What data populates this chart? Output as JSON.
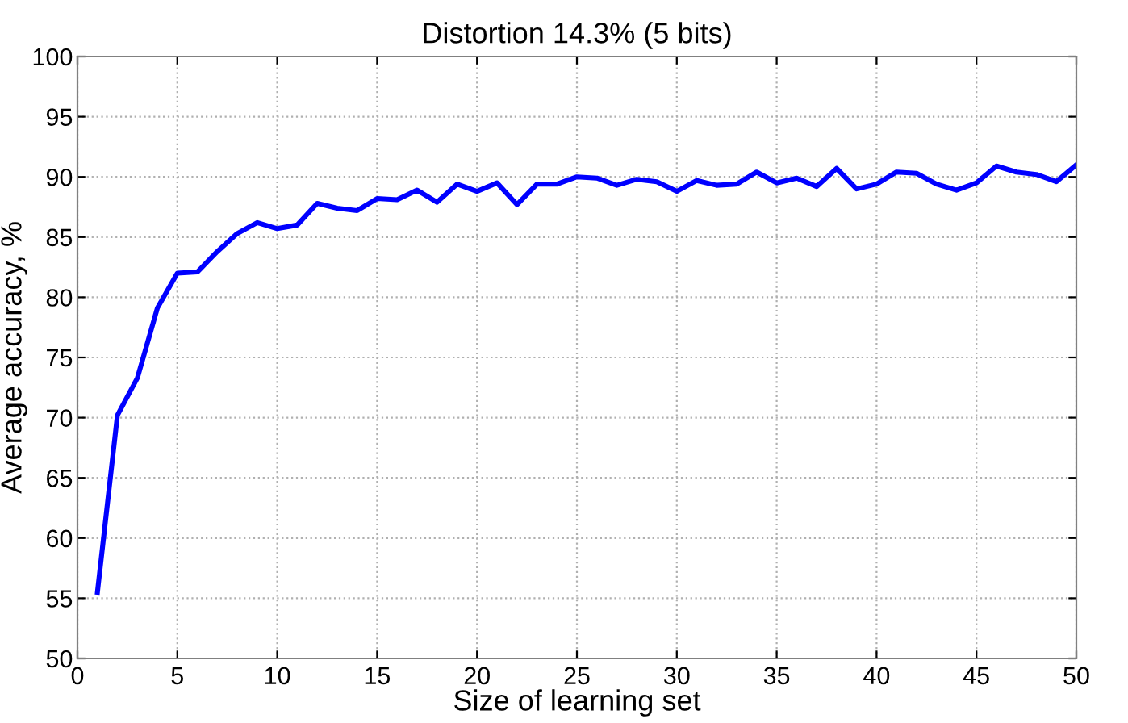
{
  "chart_data": {
    "type": "line",
    "title": "Distortion 14.3% (5 bits)",
    "xlabel": "Size of learning set",
    "ylabel": "Average accuracy, %",
    "x": [
      1,
      2,
      3,
      4,
      5,
      6,
      7,
      8,
      9,
      10,
      11,
      12,
      13,
      14,
      15,
      16,
      17,
      18,
      19,
      20,
      21,
      22,
      23,
      24,
      25,
      26,
      27,
      28,
      29,
      30,
      31,
      32,
      33,
      34,
      35,
      36,
      37,
      38,
      39,
      40,
      41,
      42,
      43,
      44,
      45,
      46,
      47,
      48,
      49,
      50
    ],
    "series": [
      {
        "color": "#0000ff",
        "values": [
          55.5,
          70.2,
          73.3,
          79.1,
          82.0,
          82.1,
          83.8,
          85.3,
          86.2,
          85.7,
          86.0,
          87.8,
          87.4,
          87.2,
          88.2,
          88.1,
          88.9,
          87.9,
          89.4,
          88.8,
          89.5,
          87.7,
          89.4,
          89.4,
          90.0,
          89.9,
          89.3,
          89.8,
          89.6,
          88.8,
          89.7,
          89.3,
          89.4,
          90.4,
          89.5,
          89.9,
          89.2,
          90.7,
          89.0,
          89.4,
          90.4,
          90.3,
          89.4,
          88.9,
          89.5,
          90.9,
          90.4,
          90.2,
          89.6,
          91.0
        ]
      }
    ],
    "xlim": [
      0,
      50
    ],
    "ylim": [
      50,
      100
    ],
    "xticks": [
      0,
      5,
      10,
      15,
      20,
      25,
      30,
      35,
      40,
      45,
      50
    ],
    "yticks": [
      50,
      55,
      60,
      65,
      70,
      75,
      80,
      85,
      90,
      95,
      100
    ],
    "grid": true,
    "marker": "none",
    "line_style": "solid"
  }
}
